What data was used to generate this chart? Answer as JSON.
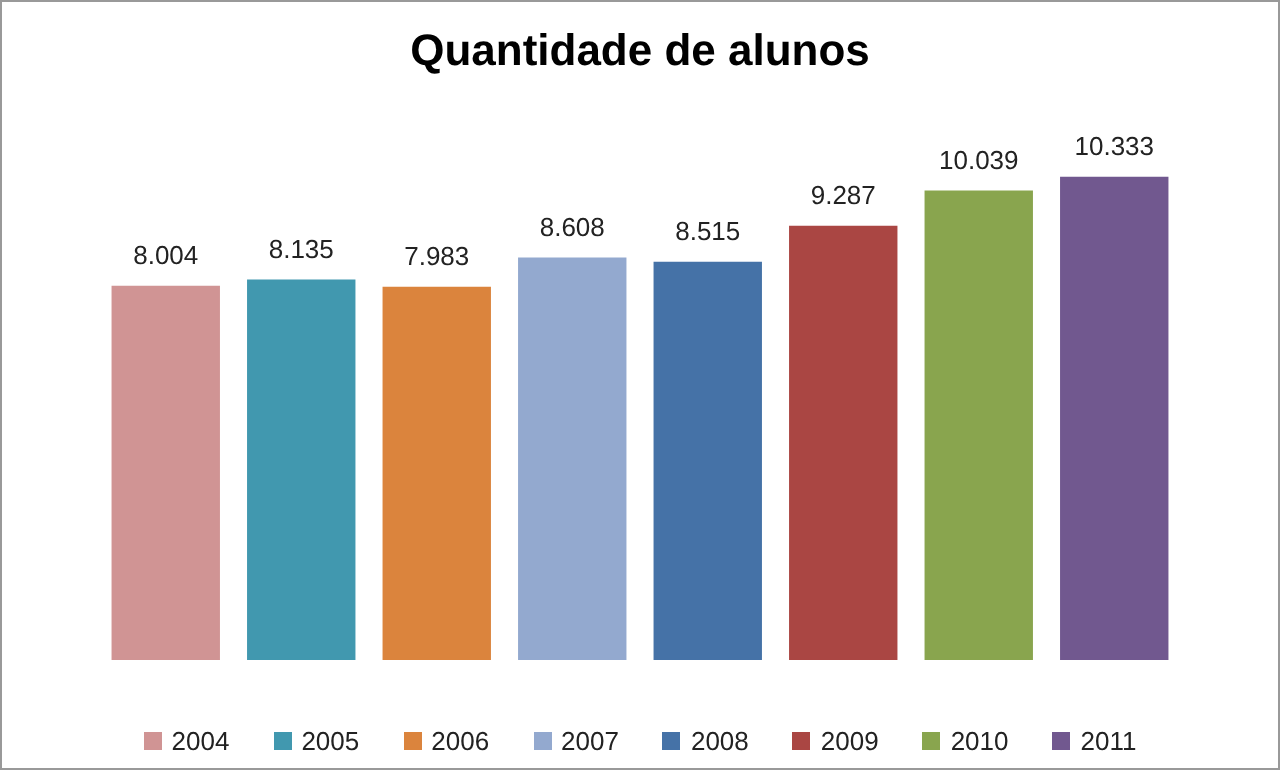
{
  "chart_data": {
    "type": "bar",
    "title": "Quantidade de alunos",
    "categories": [
      "2004",
      "2005",
      "2006",
      "2007",
      "2008",
      "2009",
      "2010",
      "2011"
    ],
    "tick_labels": false,
    "values": [
      8004,
      8135,
      7983,
      8608,
      8515,
      9287,
      10039,
      10333
    ],
    "colors": [
      "#d09494",
      "#4198af",
      "#db843d",
      "#93a9cf",
      "#4572a7",
      "#aa4643",
      "#89a54e",
      "#71588f"
    ],
    "value_labels": [
      "8.004",
      "8.135",
      "7.983",
      "8.608",
      "8.515",
      "9.287",
      "10.039",
      "10.333"
    ]
  }
}
